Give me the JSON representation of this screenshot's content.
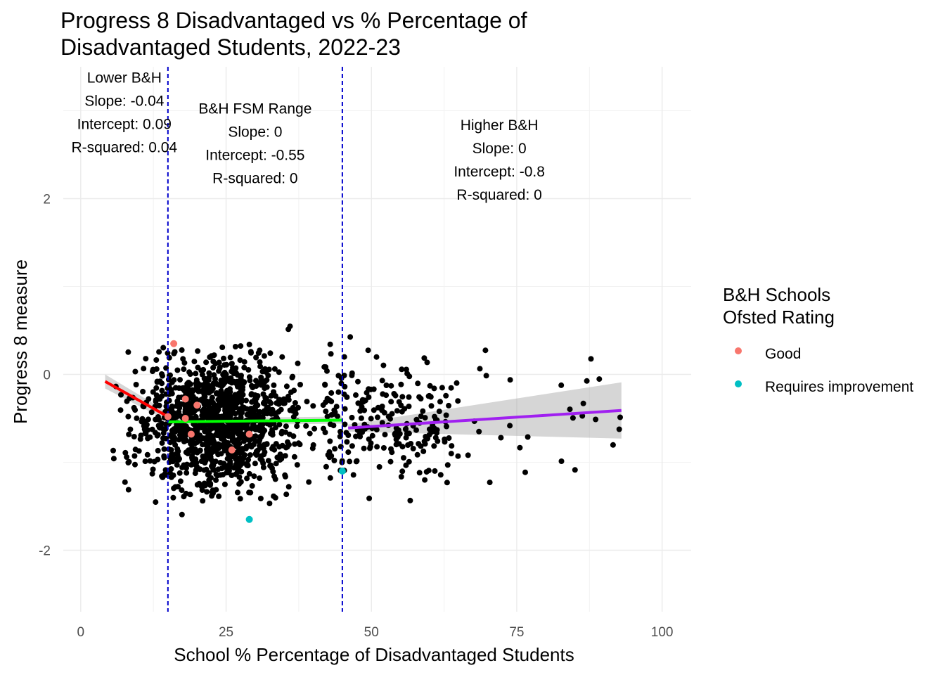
{
  "chart_data": {
    "type": "scatter",
    "title_lines": [
      "Progress 8 Disadvantaged vs % Percentage of",
      "Disadvantaged Students, 2022-23"
    ],
    "xlabel": "School % Percentage of Disadvantaged Students",
    "ylabel": "Progress 8 measure",
    "xlim": [
      -3,
      105
    ],
    "ylim": [
      -2.7,
      3.5
    ],
    "x_ticks": [
      0,
      25,
      50,
      75,
      100
    ],
    "y_ticks": [
      -2,
      0,
      2
    ],
    "grid": true,
    "legend": {
      "title_lines": [
        "B&H Schools",
        "Ofsted Rating"
      ],
      "placement": "right",
      "entries": [
        {
          "label": "Good",
          "color": "#F8766D"
        },
        {
          "label": "Requires improvement",
          "color": "#00BFC4"
        }
      ]
    },
    "vlines": [
      15,
      45
    ],
    "vline_color": "#0000CC",
    "background_points_color": "#000000",
    "background_points_seed": 20221,
    "background_points_count": 1500,
    "highlighted_points": [
      {
        "x": 16,
        "y": 0.35,
        "rating": "Good"
      },
      {
        "x": 15,
        "y": -0.48,
        "rating": "Good"
      },
      {
        "x": 18,
        "y": -0.28,
        "rating": "Good"
      },
      {
        "x": 20,
        "y": -0.35,
        "rating": "Good"
      },
      {
        "x": 18,
        "y": -0.5,
        "rating": "Good"
      },
      {
        "x": 19,
        "y": -0.68,
        "rating": "Good"
      },
      {
        "x": 29,
        "y": -0.68,
        "rating": "Good"
      },
      {
        "x": 26,
        "y": -0.86,
        "rating": "Good"
      },
      {
        "x": 29,
        "y": -1.65,
        "rating": "Requires improvement"
      },
      {
        "x": 45,
        "y": -1.1,
        "rating": "Requires improvement"
      }
    ],
    "fits": [
      {
        "name": "Lower B&H",
        "color": "#FF0000",
        "x": [
          4.2,
          15
        ],
        "y": [
          -0.08,
          -0.48
        ],
        "ci_halfwidth": [
          0.08,
          0.05
        ]
      },
      {
        "name": "B&H FSM Range",
        "color": "#00FF00",
        "x": [
          15,
          45
        ],
        "y": [
          -0.54,
          -0.52
        ],
        "ci_halfwidth": [
          0.04,
          0.04
        ]
      },
      {
        "name": "Higher B&H",
        "color": "#A020F0",
        "x": [
          46,
          93
        ],
        "y": [
          -0.61,
          -0.41
        ],
        "ci_halfwidth": [
          0.04,
          0.32
        ]
      }
    ],
    "annotations": [
      {
        "lines": [
          "Lower B&H",
          "Slope: -0.04",
          "Intercept: 0.09",
          "R-squared: 0.04"
        ],
        "x": 7.5,
        "y": 3.32
      },
      {
        "lines": [
          "B&H FSM Range",
          "Slope: 0",
          "Intercept: -0.55",
          "R-squared: 0"
        ],
        "x": 30,
        "y": 2.97
      },
      {
        "lines": [
          "Higher B&H",
          "Slope: 0",
          "Intercept: -0.8",
          "R-squared: 0"
        ],
        "x": 72,
        "y": 2.78
      }
    ]
  }
}
